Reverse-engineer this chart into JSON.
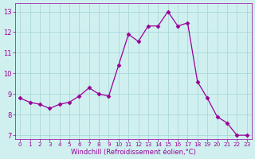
{
  "x": [
    0,
    1,
    2,
    3,
    4,
    5,
    6,
    7,
    8,
    9,
    10,
    11,
    12,
    13,
    14,
    15,
    16,
    17,
    18,
    19,
    20,
    21,
    22,
    23
  ],
  "y": [
    8.8,
    8.6,
    8.5,
    8.3,
    8.5,
    8.6,
    8.9,
    9.3,
    9.0,
    8.9,
    10.4,
    11.9,
    11.55,
    12.3,
    12.3,
    13.0,
    12.3,
    12.45,
    9.6,
    8.8,
    7.9,
    7.6,
    7.0,
    7.0
  ],
  "line_color": "#990099",
  "marker": "D",
  "marker_size": 2.5,
  "bg_color": "#d0f0f0",
  "grid_color": "#aad8d8",
  "xlabel": "Windchill (Refroidissement éolien,°C)",
  "xlabel_color": "#990099",
  "tick_color": "#990099",
  "ylim": [
    6.8,
    13.4
  ],
  "xlim": [
    -0.5,
    23.5
  ],
  "yticks": [
    7,
    8,
    9,
    10,
    11,
    12,
    13
  ],
  "xticks": [
    0,
    1,
    2,
    3,
    4,
    5,
    6,
    7,
    8,
    9,
    10,
    11,
    12,
    13,
    14,
    15,
    16,
    17,
    18,
    19,
    20,
    21,
    22,
    23
  ]
}
